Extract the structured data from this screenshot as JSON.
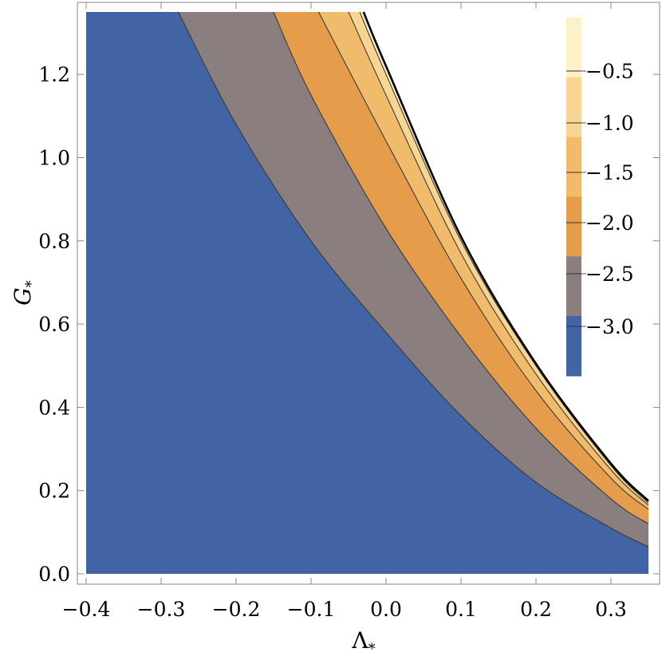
{
  "chart_data": {
    "type": "contour",
    "title": "",
    "xlabel": "Λ",
    "xlabel_sub": "*",
    "ylabel": "G",
    "ylabel_sub": "*",
    "xlim": [
      -0.4,
      0.35
    ],
    "ylim": [
      0.0,
      1.35
    ],
    "xticks": [
      -0.4,
      -0.3,
      -0.2,
      -0.1,
      0.0,
      0.1,
      0.2,
      0.3
    ],
    "xtick_labels": [
      "−0.4",
      "−0.3",
      "−0.2",
      "−0.1",
      "0.0",
      "0.1",
      "0.2",
      "0.3"
    ],
    "yticks": [
      0.0,
      0.2,
      0.4,
      0.6,
      0.8,
      1.0,
      1.2
    ],
    "ytick_labels": [
      "0.0",
      "0.2",
      "0.4",
      "0.6",
      "0.8",
      "1.0",
      "1.2"
    ],
    "contour_levels": [
      -3.0,
      -2.5,
      -2.0,
      -1.5,
      -1.0,
      -0.5
    ],
    "bands": [
      {
        "range": "< -2.5",
        "color": "#4264a4"
      },
      {
        "range": "-2.5 to -2.0",
        "color": "#8a7e7f"
      },
      {
        "range": "-2.0 to -1.5",
        "color": "#e59c4b"
      },
      {
        "range": "-1.5 to -1.0",
        "color": "#f1bb6c"
      },
      {
        "range": "-1.0 to -0.5",
        "color": "#f8d592"
      },
      {
        "range": "> -0.5",
        "color": "#fdf1c7"
      }
    ],
    "boundary_curves": [
      {
        "level": -2.5,
        "points": [
          [
            -0.277,
            1.35
          ],
          [
            -0.2,
            1.08
          ],
          [
            -0.1,
            0.8
          ],
          [
            0.0,
            0.58
          ],
          [
            0.1,
            0.38
          ],
          [
            0.2,
            0.22
          ],
          [
            0.3,
            0.11
          ],
          [
            0.35,
            0.065
          ]
        ]
      },
      {
        "level": -2.0,
        "points": [
          [
            -0.15,
            1.35
          ],
          [
            -0.1,
            1.15
          ],
          [
            0.0,
            0.83
          ],
          [
            0.1,
            0.57
          ],
          [
            0.2,
            0.35
          ],
          [
            0.3,
            0.18
          ],
          [
            0.35,
            0.12
          ]
        ]
      },
      {
        "level": -1.5,
        "points": [
          [
            -0.09,
            1.35
          ],
          [
            0.0,
            1.04
          ],
          [
            0.1,
            0.71
          ],
          [
            0.2,
            0.44
          ],
          [
            0.3,
            0.23
          ],
          [
            0.35,
            0.155
          ]
        ]
      },
      {
        "level": -1.0,
        "points": [
          [
            -0.05,
            1.35
          ],
          [
            0.0,
            1.15
          ],
          [
            0.1,
            0.77
          ],
          [
            0.2,
            0.48
          ],
          [
            0.3,
            0.25
          ],
          [
            0.35,
            0.165
          ]
        ]
      },
      {
        "level": -0.5,
        "points": [
          [
            -0.035,
            1.35
          ],
          [
            0.0,
            1.2
          ],
          [
            0.1,
            0.8
          ],
          [
            0.2,
            0.5
          ],
          [
            0.3,
            0.26
          ],
          [
            0.35,
            0.17
          ]
        ]
      },
      {
        "level": 0.0,
        "points": [
          [
            -0.03,
            1.35
          ],
          [
            0.0,
            1.22
          ],
          [
            0.1,
            0.81
          ],
          [
            0.2,
            0.505
          ],
          [
            0.3,
            0.265
          ],
          [
            0.35,
            0.175
          ]
        ]
      }
    ],
    "legend": {
      "placement": "right inside",
      "labels": [
        "−0.5",
        "−1.0",
        "−1.5",
        "−2.0",
        "−2.5",
        "−3.0"
      ]
    }
  }
}
